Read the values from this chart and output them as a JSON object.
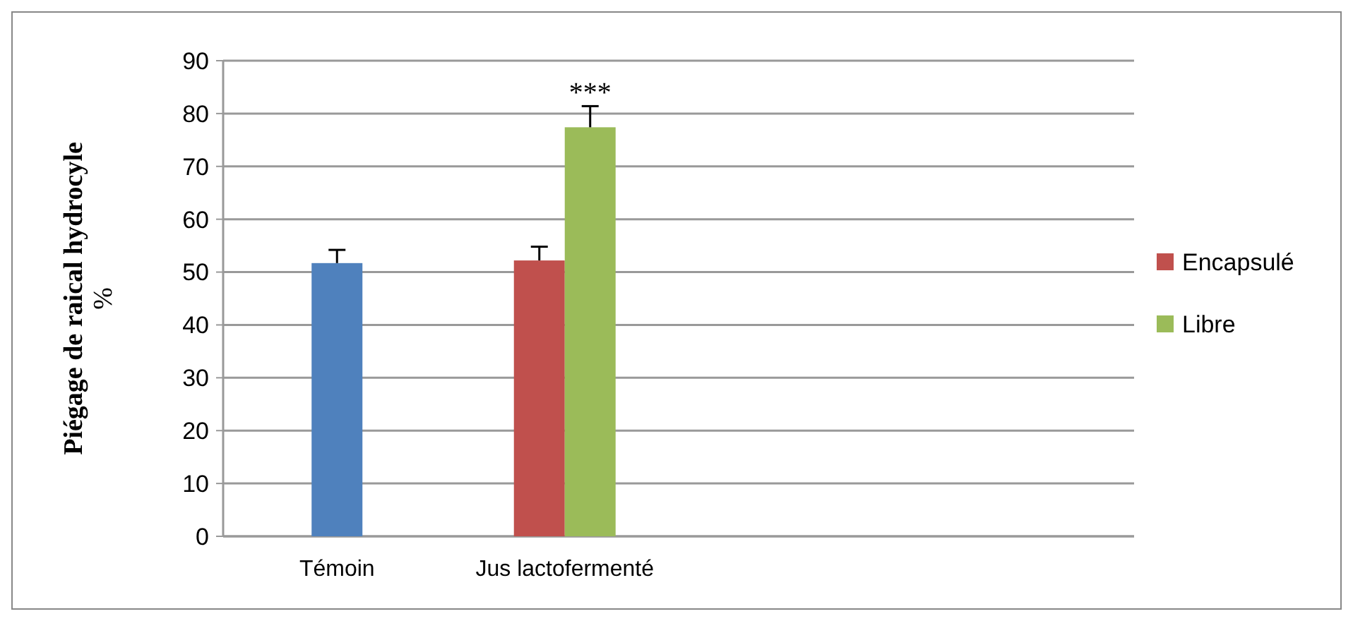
{
  "chart_data": {
    "type": "bar",
    "ylabel": "Piégage de raical hydrocyle %",
    "categories": [
      "Témoin",
      "Jus lactofermenté",
      null,
      null
    ],
    "series": [
      {
        "color": "#4f81bd",
        "values": [
          51.7,
          null,
          null,
          null
        ],
        "errors": [
          [
            51.7,
            54.2
          ],
          null,
          null,
          null
        ]
      },
      {
        "name": "Encapsulé",
        "color": "#c0504d",
        "values": [
          null,
          52.2,
          null,
          null
        ],
        "errors": [
          null,
          [
            52.2,
            54.8
          ],
          null,
          null
        ]
      },
      {
        "name": "Libre",
        "color": "#9bbb59",
        "values": [
          null,
          77.4,
          null,
          null
        ],
        "errors": [
          null,
          [
            77.4,
            81.4
          ],
          null,
          null
        ]
      }
    ],
    "ylim": [
      0,
      90
    ],
    "yticks": [
      0,
      10,
      20,
      30,
      40,
      50,
      60,
      70,
      80,
      90
    ],
    "grid": "y",
    "legend": "right",
    "annotations": [
      {
        "text": "***",
        "x": "Jus lactofermenté",
        "y": 77.4
      }
    ]
  }
}
